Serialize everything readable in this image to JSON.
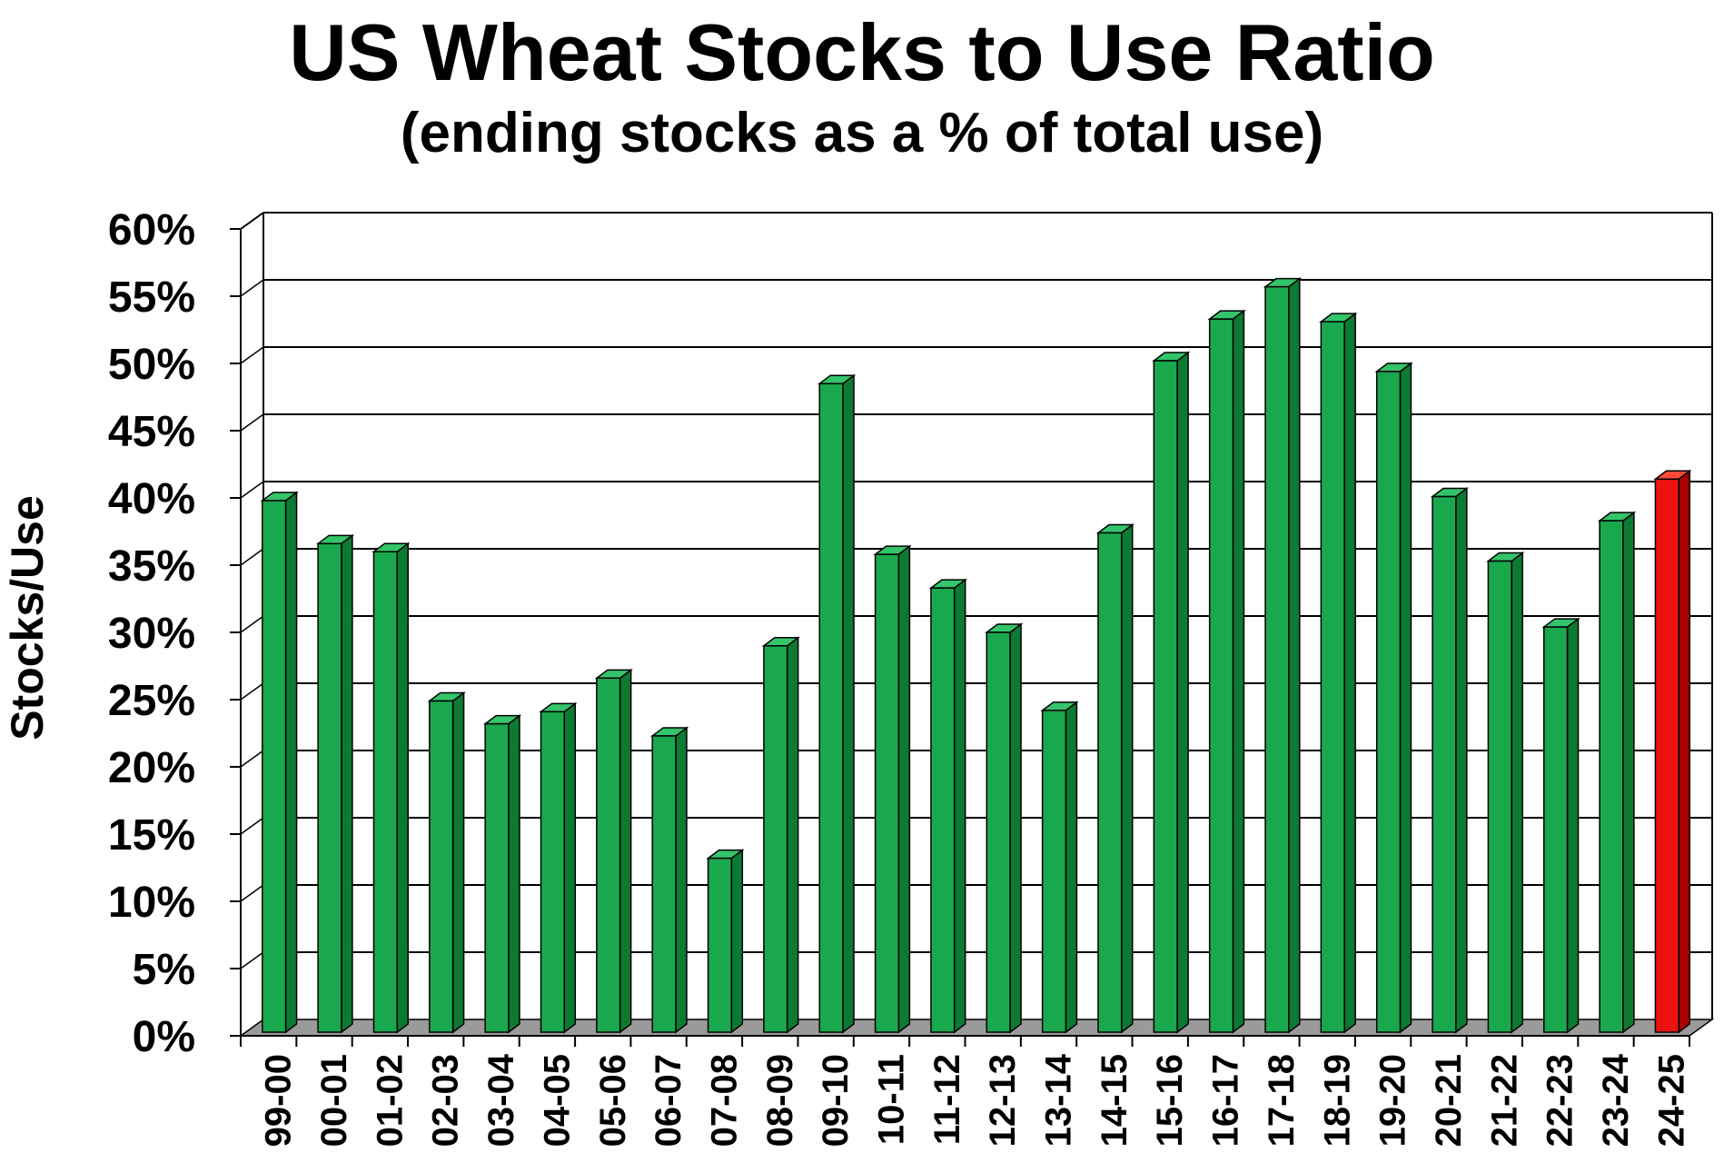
{
  "chart_data": {
    "type": "bar",
    "title": "US Wheat Stocks to Use Ratio",
    "subtitle": "(ending stocks as a % of total use)",
    "xlabel": "",
    "ylabel": "Stocks/Use",
    "ylim": [
      0,
      60
    ],
    "yticks": [
      "0%",
      "5%",
      "10%",
      "15%",
      "20%",
      "25%",
      "30%",
      "35%",
      "40%",
      "45%",
      "50%",
      "55%",
      "60%"
    ],
    "grid": true,
    "categories": [
      "99-00",
      "00-01",
      "01-02",
      "02-03",
      "03-04",
      "04-05",
      "05-06",
      "06-07",
      "07-08",
      "08-09",
      "09-10",
      "10-11",
      "11-12",
      "12-13",
      "13-14",
      "14-15",
      "15-16",
      "16-17",
      "17-18",
      "18-19",
      "19-20",
      "20-21",
      "21-22",
      "22-23",
      "23-24",
      "24-25"
    ],
    "values": [
      39.8,
      36.6,
      36.0,
      24.9,
      23.2,
      24.1,
      26.6,
      22.3,
      13.2,
      29.0,
      48.5,
      35.8,
      33.3,
      30.0,
      24.2,
      37.4,
      50.2,
      53.3,
      55.7,
      53.1,
      49.4,
      40.1,
      35.3,
      30.4,
      38.3,
      41.4
    ],
    "colors": {
      "default": "#1aa84e",
      "default_side": "#0d7a33",
      "default_top": "#34c46a",
      "highlight": "#ee1111",
      "highlight_side": "#a80000",
      "highlight_top": "#ff4a3a",
      "highlight_category": "24-25",
      "floor": "#9a9a9a",
      "grid": "#000000"
    }
  }
}
